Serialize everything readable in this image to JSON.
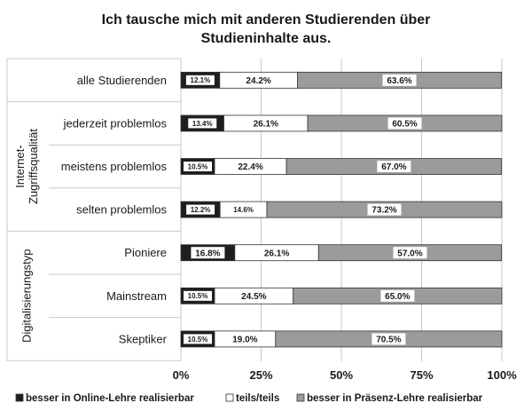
{
  "colors": {
    "online": "#1e1e1e",
    "teils": "#ffffff",
    "praesenz": "#9b9b9b",
    "border": "#333333",
    "grid": "#c8c8c8"
  },
  "chart_data": {
    "type": "bar",
    "orientation": "horizontal",
    "stacked": "percent",
    "title": "Ich tausche mich mit anderen Studierenden über Studieninhalte aus.",
    "title_lines": [
      "Ich tausche mich mit anderen Studierenden über",
      "Studieninhalte aus."
    ],
    "categories": [
      "alle Studierenden",
      "jederzeit problemlos",
      "meistens problemlos",
      "selten problemlos",
      "Pioniere",
      "Mainstream",
      "Skeptiker"
    ],
    "groups": [
      {
        "name_lines": [
          "Internet-",
          "Zugriffsqualität"
        ],
        "categories": [
          "jederzeit problemlos",
          "meistens problemlos",
          "selten problemlos"
        ]
      },
      {
        "name_lines": [
          "Digitalisierungstyp"
        ],
        "categories": [
          "Pioniere",
          "Mainstream",
          "Skeptiker"
        ]
      }
    ],
    "series": [
      {
        "name": "besser in Online-Lehre realisierbar",
        "color_key": "online",
        "values": [
          12.1,
          13.4,
          10.5,
          12.2,
          16.8,
          10.5,
          10.5
        ],
        "labels": [
          "12.1%",
          "13.4%",
          "10.5%",
          "12.2%",
          "16.8%",
          "10.5%",
          "10.5%"
        ]
      },
      {
        "name": "teils/teils",
        "color_key": "teils",
        "values": [
          24.2,
          26.1,
          22.4,
          14.6,
          26.1,
          24.5,
          19.0
        ],
        "labels": [
          "24.2%",
          "26.1%",
          "22.4%",
          "14.6%",
          "26.1%",
          "24.5%",
          "19.0%"
        ]
      },
      {
        "name": "besser in Präsenz-Lehre realisierbar",
        "color_key": "praesenz",
        "values": [
          63.6,
          60.5,
          67.0,
          73.2,
          57.0,
          65.0,
          70.5
        ],
        "labels": [
          "63.6%",
          "60.5%",
          "67.0%",
          "73.2%",
          "57.0%",
          "65.0%",
          "70.5%"
        ]
      }
    ],
    "xlim": [
      0,
      100
    ],
    "xticks": [
      "0%",
      "25%",
      "50%",
      "75%",
      "100%"
    ],
    "grid": true,
    "legend_position": "bottom"
  }
}
